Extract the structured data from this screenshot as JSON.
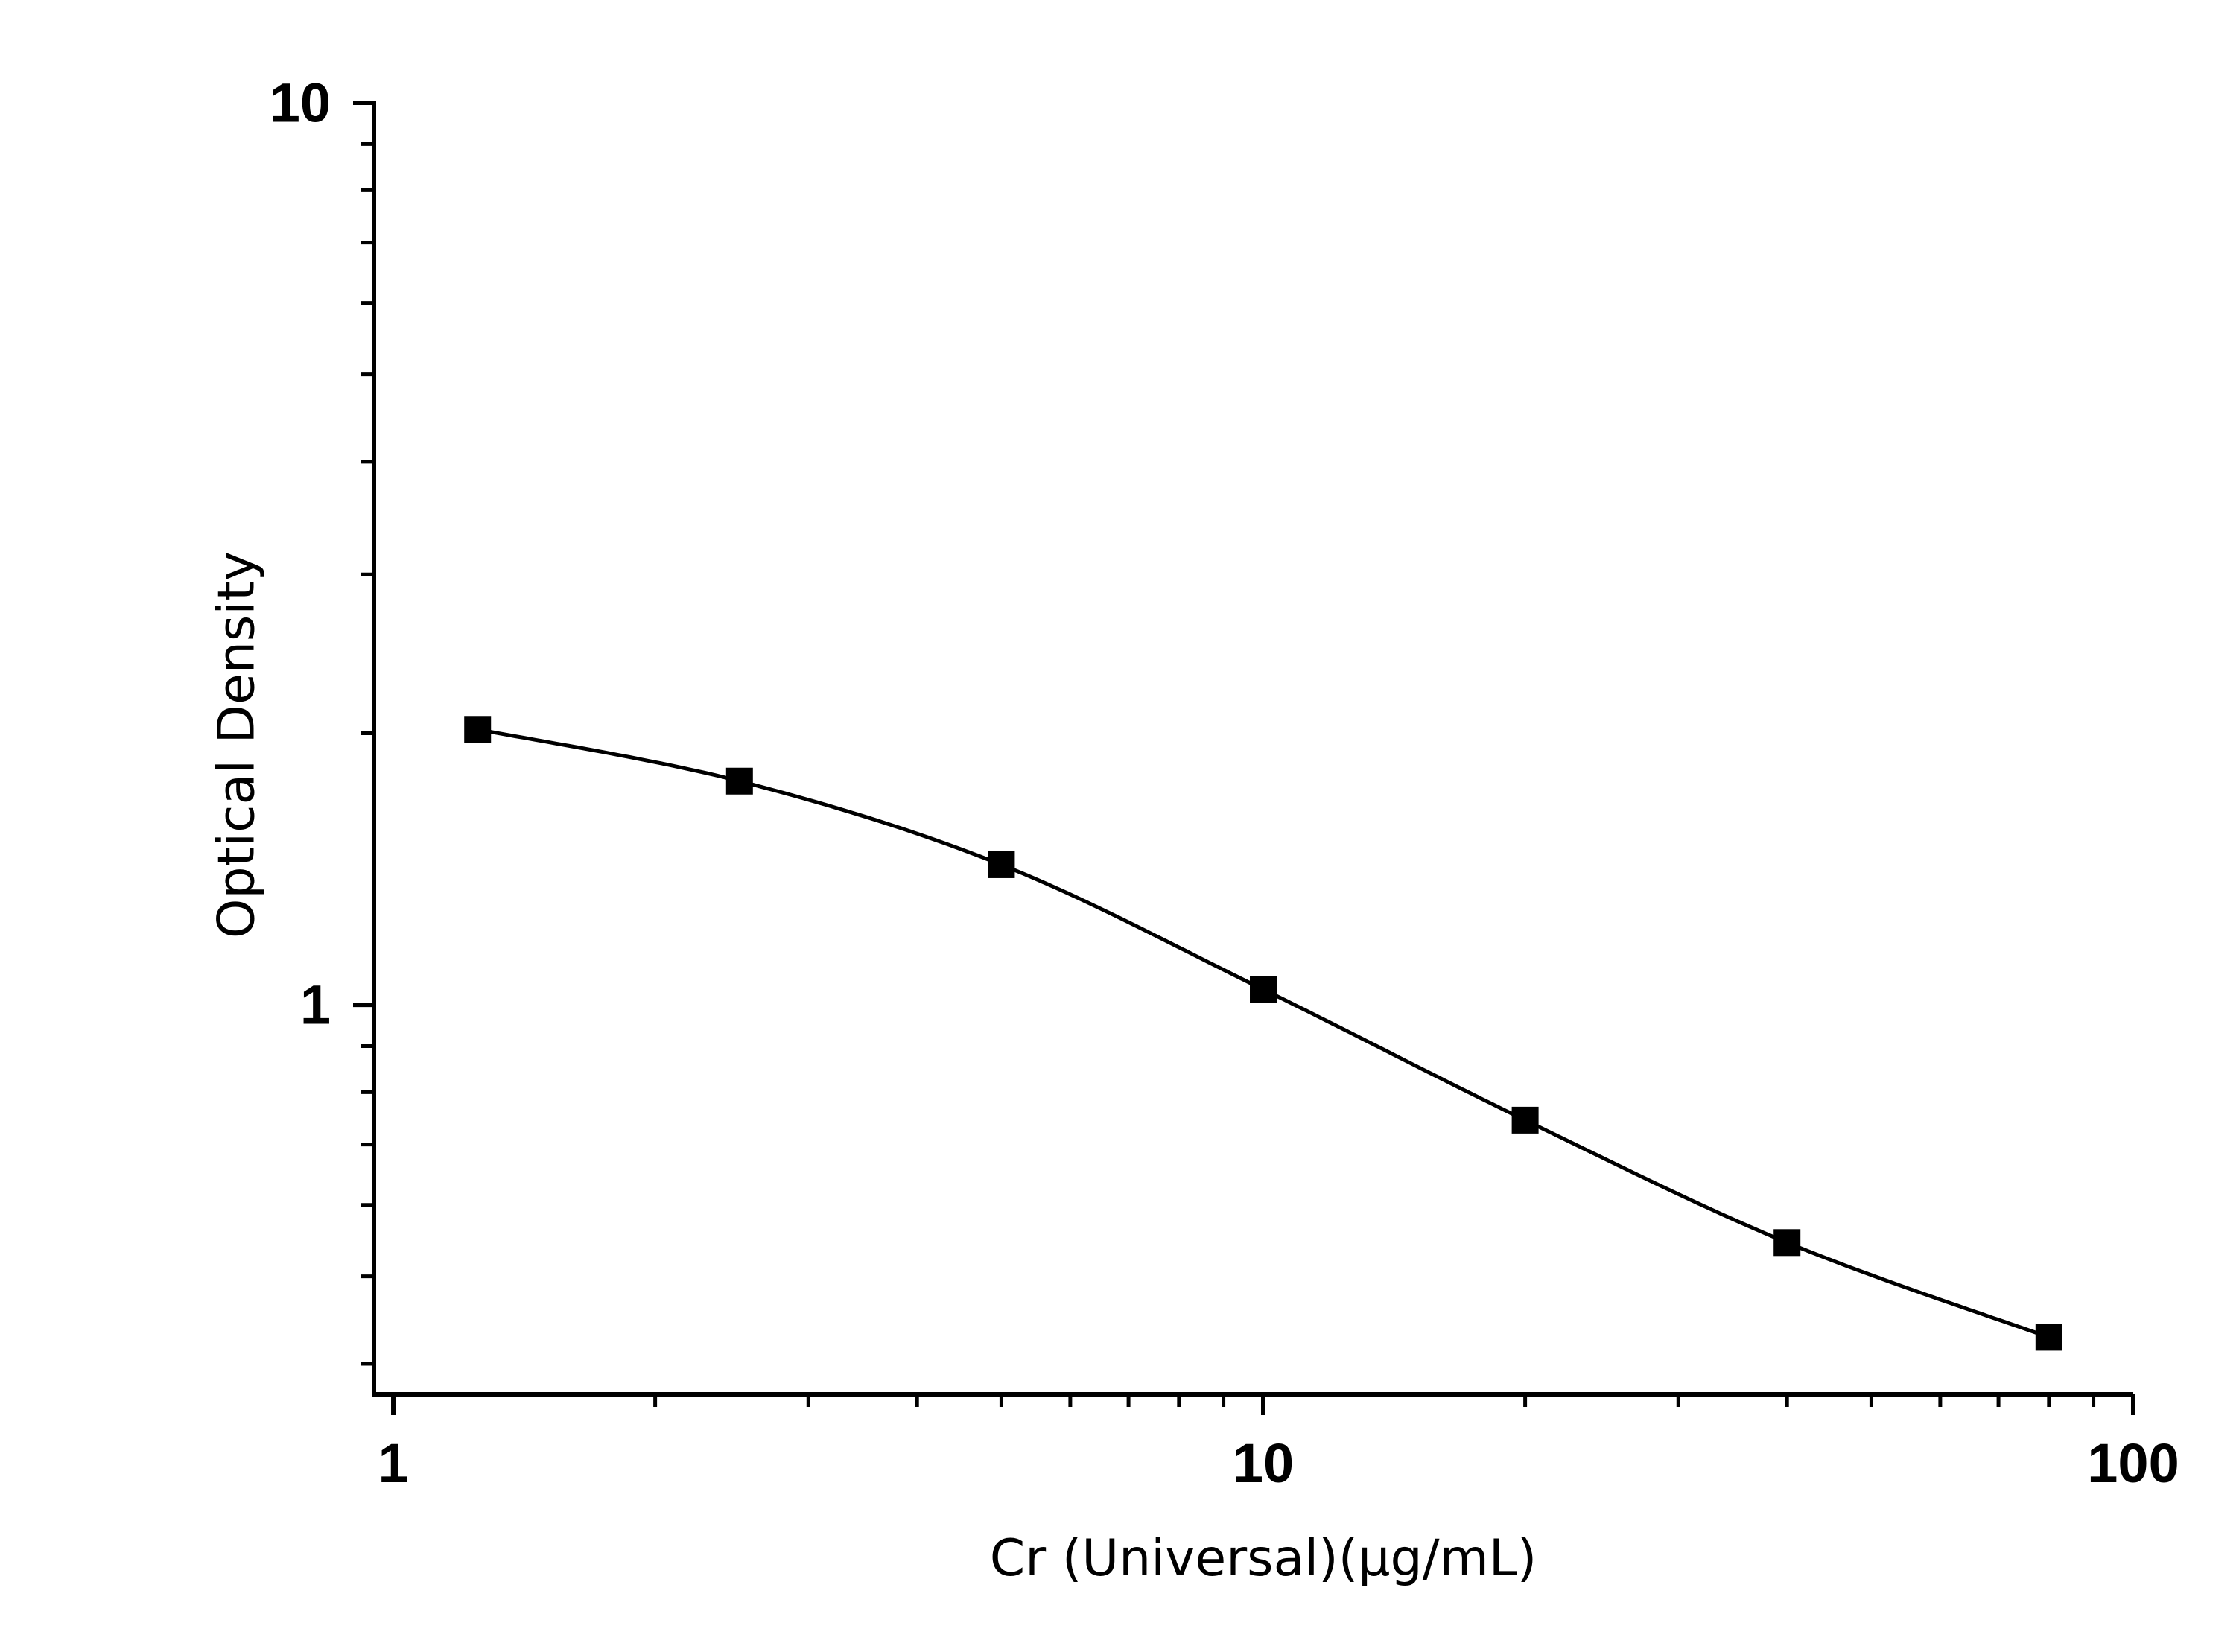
{
  "chart_data": {
    "type": "scatter",
    "title": "",
    "xlabel": "Cr (Universal)(μg/mL)",
    "ylabel": "Optical Density",
    "xscale": "log",
    "yscale": "log",
    "xlim": [
      0.95,
      100
    ],
    "ylim": [
      0.37,
      10
    ],
    "x_ticks": [
      1,
      10,
      100
    ],
    "x_tick_labels": [
      "1",
      "10",
      "100"
    ],
    "y_ticks": [
      1,
      10
    ],
    "y_tick_labels": [
      "1",
      "10"
    ],
    "grid": false,
    "legend": "none",
    "marker": "square",
    "fit_curve": "smooth",
    "color": "#000000",
    "series": [
      {
        "x": [
          1.25,
          2.5,
          5,
          10,
          20,
          40,
          80
        ],
        "y": [
          2.02,
          1.77,
          1.43,
          1.04,
          0.745,
          0.545,
          0.428
        ]
      }
    ]
  }
}
